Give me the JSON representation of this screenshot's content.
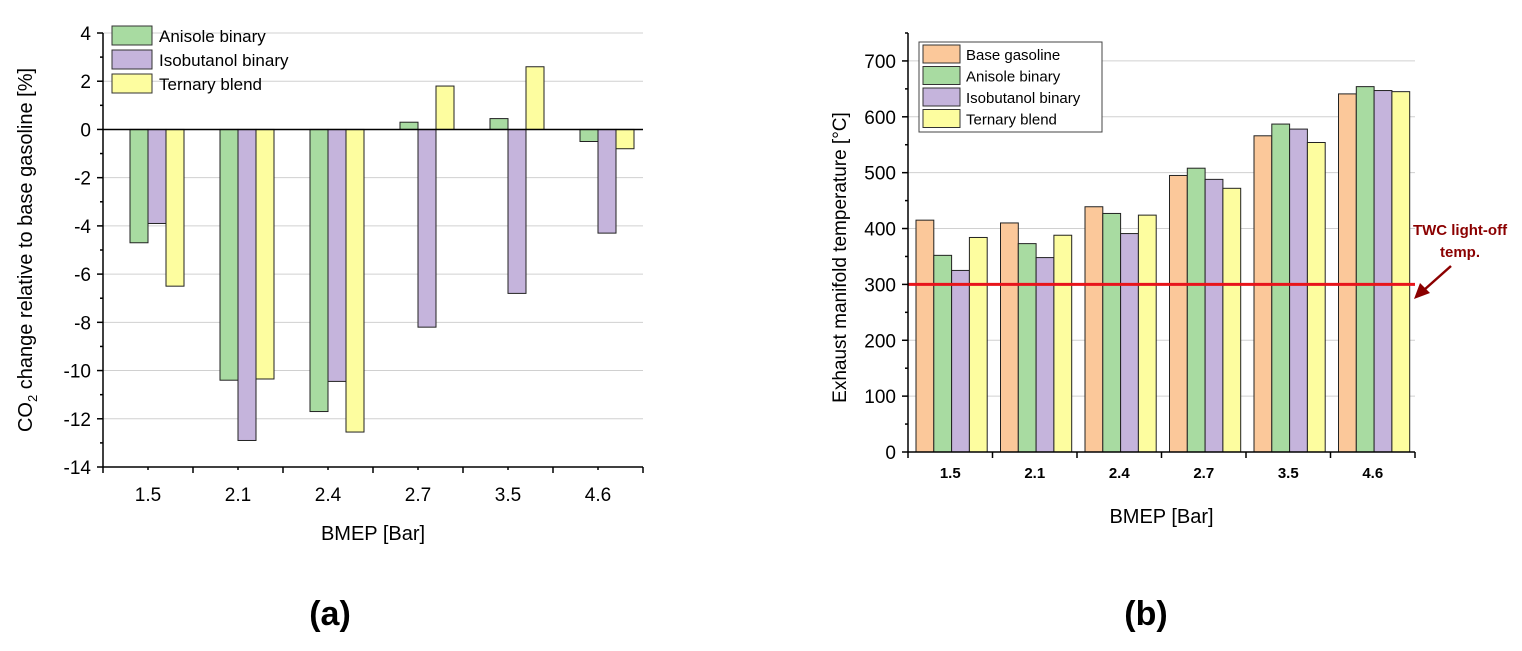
{
  "chart_data": [
    {
      "type": "bar",
      "panel_label": "(a)",
      "categories": [
        "1.5",
        "2.1",
        "2.4",
        "2.7",
        "3.5",
        "4.6"
      ],
      "series": [
        {
          "name": "Anisole binary",
          "color": "#a8dba1",
          "values": [
            -4.7,
            -10.4,
            -11.7,
            0.3,
            0.45,
            -0.5
          ]
        },
        {
          "name": "Isobutanol binary",
          "color": "#c5b4dc",
          "values": [
            -3.9,
            -12.9,
            -10.45,
            -8.2,
            -6.8,
            -4.3
          ]
        },
        {
          "name": "Ternary blend",
          "color": "#fdfd9f",
          "values": [
            -6.5,
            -10.35,
            -12.55,
            1.8,
            2.6,
            -0.8
          ]
        }
      ],
      "xlabel": "BMEP [Bar]",
      "ylabel_prefix": "CO",
      "ylabel_sub": "2",
      "ylabel_suffix": " change relative to base gasoline [%]",
      "ylim": [
        -14,
        4
      ],
      "yticks": [
        "-14",
        "-12",
        "-10",
        "-8",
        "-6",
        "-4",
        "-2",
        "0",
        "2",
        "4"
      ],
      "grid": true,
      "legend": "top-left"
    },
    {
      "type": "bar",
      "panel_label": "(b)",
      "categories": [
        "1.5",
        "2.1",
        "2.4",
        "2.7",
        "3.5",
        "4.6"
      ],
      "series": [
        {
          "name": "Base gasoline",
          "color": "#fbc89a",
          "values": [
            415,
            410,
            439,
            495,
            566,
            641
          ]
        },
        {
          "name": "Anisole binary",
          "color": "#a8dba1",
          "values": [
            352,
            373,
            427,
            508,
            587,
            654
          ]
        },
        {
          "name": "Isobutanol binary",
          "color": "#c5b4dc",
          "values": [
            325,
            348,
            391,
            488,
            578,
            647
          ]
        },
        {
          "name": "Ternary blend",
          "color": "#fdfd9f",
          "values": [
            384,
            388,
            424,
            472,
            554,
            645
          ]
        }
      ],
      "xlabel": "BMEP [Bar]",
      "ylabel": "Exhaust manifold temperature [°C]",
      "ylim": [
        0,
        750
      ],
      "yticks": [
        "0",
        "100",
        "200",
        "300",
        "400",
        "500",
        "600",
        "700"
      ],
      "grid": true,
      "legend": "top-left",
      "reference_line": {
        "value": 300,
        "color": "#e8141b",
        "label_line1": "TWC light-off",
        "label_line2": "temp.",
        "label_color": "#8b0000"
      }
    }
  ]
}
